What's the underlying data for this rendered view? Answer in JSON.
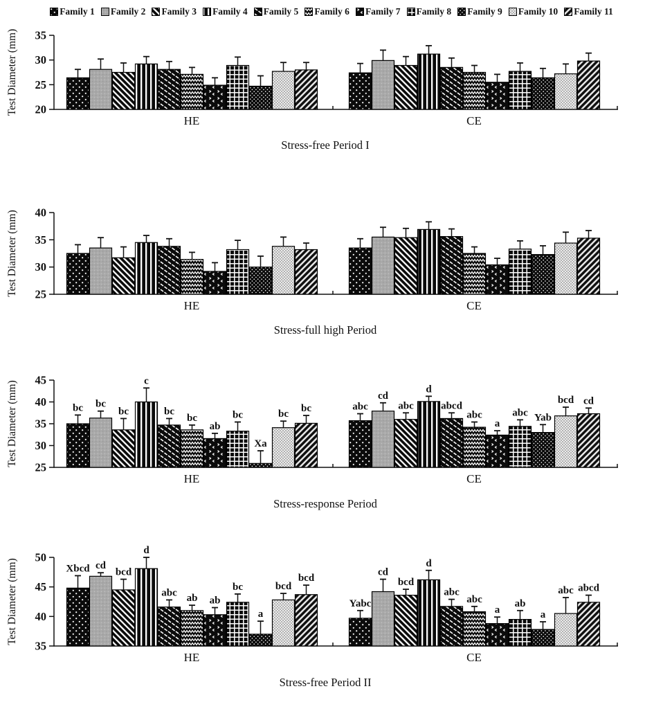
{
  "figure": {
    "background": "#ffffff",
    "ink_color": "#111111",
    "gray_fill": "#a9a9a9",
    "light_fill": "#ececec",
    "ylabel": "Test Diameter (mm)",
    "group_labels": [
      "HE",
      "CE"
    ],
    "legend": [
      {
        "label": "Family 1",
        "pattern": "black-sparse-white-dots"
      },
      {
        "label": "Family 2",
        "pattern": "gray-fine-dots"
      },
      {
        "label": "Family 3",
        "pattern": "diagonal-stripes-backslash"
      },
      {
        "label": "Family 4",
        "pattern": "vertical-stripes"
      },
      {
        "label": "Family 5",
        "pattern": "diagonal-dash-rows"
      },
      {
        "label": "Family 6",
        "pattern": "zigzag-chevron"
      },
      {
        "label": "Family 7",
        "pattern": "black-scattered-specks"
      },
      {
        "label": "Family 8",
        "pattern": "grid-plaid"
      },
      {
        "label": "Family 9",
        "pattern": "black-fine-dots"
      },
      {
        "label": "Family 10",
        "pattern": "light-checker"
      },
      {
        "label": "Family 11",
        "pattern": "diagonal-stripes-slash"
      }
    ]
  },
  "chart_data": [
    {
      "type": "bar",
      "title": "Stress-free Period I",
      "ylabel": "Test Diameter (mm)",
      "ylim": [
        20,
        35
      ],
      "yticks": [
        20,
        25,
        30,
        35
      ],
      "groups": [
        "HE",
        "CE"
      ],
      "categories": [
        "Family 1",
        "Family 2",
        "Family 3",
        "Family 4",
        "Family 5",
        "Family 6",
        "Family 7",
        "Family 8",
        "Family 9",
        "Family 10",
        "Family 11"
      ],
      "series": [
        {
          "group": "HE",
          "values": [
            26.4,
            28.1,
            27.5,
            29.2,
            28.1,
            27.1,
            24.9,
            28.9,
            24.7,
            27.7,
            28.0
          ],
          "errors": [
            1.7,
            2.1,
            1.9,
            1.5,
            1.6,
            1.4,
            1.5,
            1.7,
            2.1,
            1.8,
            1.5
          ],
          "sig_labels": null
        },
        {
          "group": "CE",
          "values": [
            27.4,
            29.9,
            28.9,
            31.2,
            28.5,
            27.5,
            25.5,
            27.7,
            26.4,
            27.2,
            29.8
          ],
          "errors": [
            1.9,
            2.1,
            1.8,
            1.7,
            1.9,
            1.4,
            1.6,
            1.7,
            1.9,
            2.0,
            1.6
          ],
          "sig_labels": null
        }
      ]
    },
    {
      "type": "bar",
      "title": "Stress-full high Period",
      "ylabel": "Test Diameter (mm)",
      "ylim": [
        25,
        40
      ],
      "yticks": [
        25,
        30,
        35,
        40
      ],
      "groups": [
        "HE",
        "CE"
      ],
      "categories": [
        "Family 1",
        "Family 2",
        "Family 3",
        "Family 4",
        "Family 5",
        "Family 6",
        "Family 7",
        "Family 8",
        "Family 9",
        "Family 10",
        "Family 11"
      ],
      "series": [
        {
          "group": "HE",
          "values": [
            32.5,
            33.5,
            31.7,
            34.5,
            33.8,
            31.4,
            29.2,
            33.2,
            30.0,
            33.8,
            33.2
          ],
          "errors": [
            1.6,
            1.9,
            2.0,
            1.3,
            1.4,
            1.3,
            1.6,
            1.7,
            2.0,
            1.7,
            1.2
          ],
          "sig_labels": null
        },
        {
          "group": "CE",
          "values": [
            33.5,
            35.5,
            35.4,
            36.9,
            35.6,
            32.5,
            30.4,
            33.3,
            32.3,
            34.4,
            35.3
          ],
          "errors": [
            1.7,
            1.8,
            1.7,
            1.4,
            1.4,
            1.2,
            1.2,
            1.5,
            1.6,
            2.0,
            1.4
          ],
          "sig_labels": null
        }
      ]
    },
    {
      "type": "bar",
      "title": "Stress-response Period",
      "ylabel": "Test Diameter (mm)",
      "ylim": [
        25,
        45
      ],
      "yticks": [
        25,
        30,
        35,
        40,
        45
      ],
      "groups": [
        "HE",
        "CE"
      ],
      "categories": [
        "Family 1",
        "Family 2",
        "Family 3",
        "Family 4",
        "Family 5",
        "Family 6",
        "Family 7",
        "Family 8",
        "Family 9",
        "Family 10",
        "Family 11"
      ],
      "series": [
        {
          "group": "HE",
          "values": [
            35.0,
            36.3,
            33.6,
            40.0,
            34.7,
            33.6,
            31.6,
            33.3,
            25.9,
            34.1,
            35.1
          ],
          "errors": [
            2.0,
            1.6,
            2.6,
            3.2,
            1.5,
            1.1,
            1.2,
            2.1,
            2.9,
            1.5,
            1.8
          ],
          "sig_labels": [
            "bc",
            "bc",
            "bc",
            "c",
            "bc",
            "bc",
            "ab",
            "bc",
            "Xa",
            "bc",
            "bc"
          ]
        },
        {
          "group": "CE",
          "values": [
            35.7,
            37.9,
            36.0,
            40.1,
            36.2,
            34.2,
            32.4,
            34.4,
            33.0,
            36.8,
            37.3
          ],
          "errors": [
            1.6,
            1.9,
            1.5,
            1.2,
            1.3,
            1.2,
            1.0,
            1.5,
            1.8,
            2.0,
            1.3
          ],
          "sig_labels": [
            "abc",
            "cd",
            "abc",
            "d",
            "abcd",
            "abc",
            "a",
            "abc",
            "Yab",
            "bcd",
            "cd"
          ]
        }
      ]
    },
    {
      "type": "bar",
      "title": "Stress-free Period II",
      "ylabel": "Test Diameter (mm)",
      "ylim": [
        35,
        50
      ],
      "yticks": [
        35,
        40,
        45,
        50
      ],
      "groups": [
        "HE",
        "CE"
      ],
      "categories": [
        "Family 1",
        "Family 2",
        "Family 3",
        "Family 4",
        "Family 5",
        "Family 6",
        "Family 7",
        "Family 8",
        "Family 9",
        "Family 10",
        "Family 11"
      ],
      "series": [
        {
          "group": "HE",
          "values": [
            44.8,
            46.8,
            44.5,
            48.1,
            41.6,
            41.0,
            40.3,
            42.4,
            37.0,
            42.8,
            43.7
          ],
          "errors": [
            2.1,
            0.6,
            1.8,
            1.9,
            1.2,
            0.9,
            1.2,
            1.4,
            2.2,
            1.1,
            1.6
          ],
          "sig_labels": [
            "Xbcd",
            "cd",
            "bcd",
            "d",
            "abc",
            "ab",
            "ab",
            "bc",
            "a",
            "bcd",
            "bcd"
          ]
        },
        {
          "group": "CE",
          "values": [
            39.7,
            44.2,
            43.6,
            46.2,
            41.7,
            40.8,
            38.8,
            39.5,
            37.8,
            40.5,
            42.4
          ],
          "errors": [
            1.3,
            2.1,
            1.0,
            1.6,
            1.2,
            0.9,
            1.1,
            1.5,
            1.3,
            2.7,
            1.2
          ],
          "sig_labels": [
            "Yabc",
            "cd",
            "bcd",
            "d",
            "abc",
            "abc",
            "a",
            "ab",
            "a",
            "abc",
            "abcd"
          ]
        }
      ]
    }
  ]
}
